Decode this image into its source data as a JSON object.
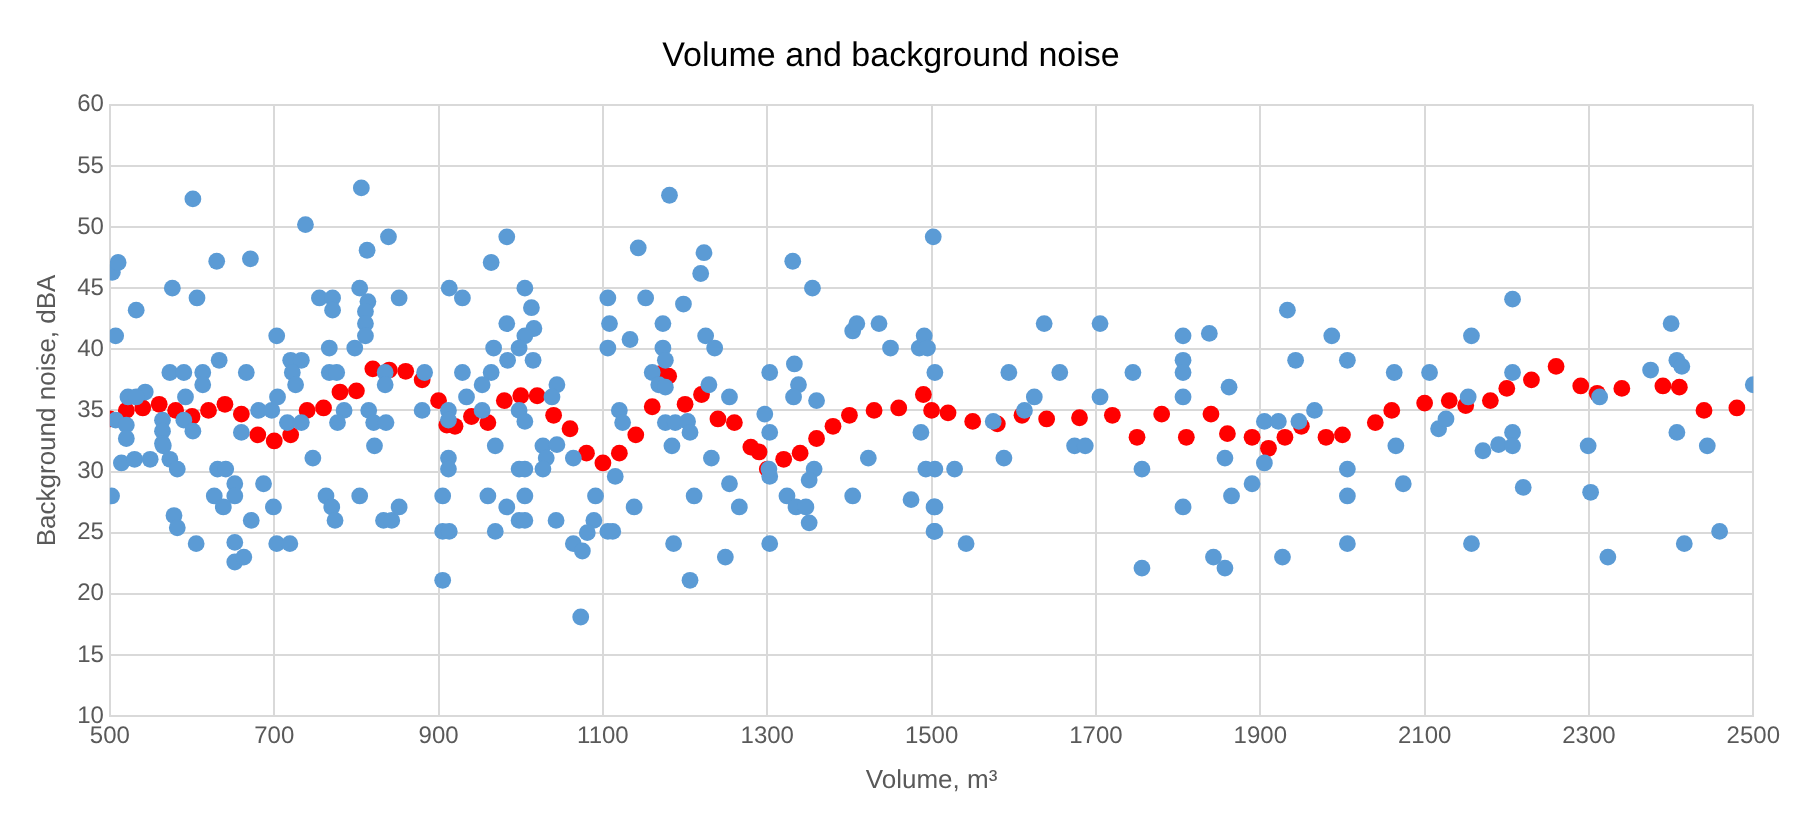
{
  "chart_data": {
    "type": "scatter",
    "title": "Volume and background noise",
    "xlabel": "Volume, m³",
    "ylabel": "Background noise, dBA",
    "xlim": [
      500,
      2500
    ],
    "xticks": [
      500,
      700,
      900,
      1100,
      1300,
      1500,
      1700,
      1900,
      2100,
      2300,
      2500
    ],
    "ylim": [
      10,
      60
    ],
    "yticks": [
      10,
      15,
      20,
      25,
      30,
      35,
      40,
      45,
      50,
      55,
      60
    ],
    "grid": true,
    "legend": false,
    "marker": "circle",
    "series": [
      {
        "color": "#5b9bd5",
        "x": [
          601,
          806,
          503,
          510,
          738,
          839,
          813,
          630,
          671,
          576,
          606,
          532,
          804,
          755,
          771,
          771,
          814,
          811,
          811,
          811,
          852,
          507,
          703,
          767,
          798,
          913,
          929,
          964,
          983,
          983,
          967,
          633,
          573,
          590,
          613,
          666,
          720,
          733,
          722,
          726,
          767,
          776,
          883,
          835,
          835,
          929,
          964,
          953,
          984,
          522,
          543,
          532,
          592,
          613,
          507,
          520,
          520,
          564,
          564,
          564,
          514,
          530,
          549,
          565,
          573,
          582,
          590,
          601,
          681,
          697,
          704,
          716,
          733,
          660,
          785,
          777,
          815,
          821,
          836,
          822,
          747,
          880,
          912,
          912,
          934,
          953,
          912,
          912,
          969,
          998,
          998,
          502,
          631,
          641,
          652,
          652,
          627,
          638,
          687,
          699,
          672,
          578,
          582,
          605,
          652,
          652,
          663,
          703,
          719,
          763,
          770,
          774,
          804,
          833,
          843,
          852,
          905,
          905,
          913,
          905,
          960,
          983,
          969,
          998,
          1181,
          1143,
          1223,
          1219,
          1331,
          1355,
          1005,
          1013,
          1016,
          1005,
          998,
          1015,
          1106,
          1152,
          1198,
          1108,
          1106,
          1133,
          1173,
          1173,
          1225,
          1236,
          1176,
          1160,
          1168,
          1176,
          1229,
          1254,
          1303,
          1333,
          1338,
          1332,
          1360,
          1404,
          1409,
          1436,
          1450,
          1485,
          1491,
          1495,
          1502,
          1044,
          1038,
          1005,
          1027,
          1031,
          1044,
          1064,
          1027,
          1120,
          1124,
          1115,
          1176,
          1188,
          1203,
          1206,
          1184,
          1232,
          1297,
          1303,
          1303,
          1302,
          1357,
          1351,
          1423,
          1487,
          1493,
          1005,
          1005,
          1005,
          1043,
          1091,
          1089,
          1081,
          1106,
          1112,
          1064,
          1075,
          1073,
          1138,
          1211,
          1186,
          1206,
          1254,
          1266,
          1249,
          1303,
          1324,
          1335,
          1347,
          1351,
          1404,
          1475,
          1503,
          1503,
          1504,
          1637,
          1705,
          1594,
          1656,
          1745,
          1625,
          1613,
          1705,
          1575,
          1806,
          1806,
          1806,
          1806,
          1838,
          1862,
          1933,
          1943,
          1987,
          2006,
          1905,
          1922,
          1947,
          1966,
          1674,
          1687,
          1588,
          1528,
          1504,
          1504,
          1504,
          1542,
          1756,
          1756,
          1857,
          1865,
          1890,
          1905,
          1806,
          1843,
          1857,
          1927,
          2006,
          2006,
          2006,
          2207,
          2157,
          2400,
          2063,
          2106,
          2207,
          2375,
          2407,
          2413,
          2500,
          2153,
          2313,
          2117,
          2126,
          2065,
          2171,
          2190,
          2207,
          2207,
          2299,
          2407,
          2444,
          2074,
          2220,
          2302,
          2157,
          2323,
          2416,
          2459
        ],
        "values": [
          52.3,
          53.2,
          46.3,
          47.1,
          50.2,
          49.2,
          48.1,
          47.2,
          47.4,
          45.0,
          44.2,
          43.2,
          45.0,
          44.2,
          44.2,
          43.2,
          43.9,
          43.1,
          42.1,
          41.1,
          44.2,
          41.1,
          41.1,
          40.1,
          40.1,
          45.0,
          44.2,
          47.1,
          49.2,
          42.1,
          40.1,
          39.1,
          38.1,
          38.1,
          38.1,
          38.1,
          39.1,
          39.1,
          38.1,
          37.1,
          38.1,
          38.1,
          38.1,
          38.1,
          37.1,
          38.1,
          38.1,
          37.1,
          39.1,
          36.1,
          36.5,
          36.1,
          36.1,
          37.1,
          34.2,
          33.8,
          32.7,
          34.2,
          33.3,
          32.3,
          30.7,
          31.0,
          31.0,
          32.1,
          31.0,
          30.2,
          34.2,
          33.3,
          35.0,
          35.0,
          36.1,
          34.0,
          34.0,
          33.2,
          35.0,
          34.0,
          35.0,
          34.0,
          34.0,
          32.1,
          31.1,
          35.0,
          35.0,
          34.2,
          36.1,
          35.0,
          31.1,
          30.2,
          32.1,
          30.2,
          35.0,
          28.0,
          30.2,
          30.2,
          29.0,
          28.0,
          28.0,
          27.1,
          29.0,
          27.1,
          26.0,
          26.4,
          25.4,
          24.1,
          24.2,
          22.6,
          23.0,
          24.1,
          24.1,
          28.0,
          27.1,
          26.0,
          28.0,
          26.0,
          26.0,
          27.1,
          28.0,
          25.1,
          25.1,
          21.1,
          28.0,
          27.1,
          25.1,
          26.0,
          52.6,
          48.3,
          47.9,
          46.2,
          47.2,
          45.0,
          45.0,
          43.4,
          41.7,
          41.1,
          40.1,
          39.1,
          44.2,
          44.2,
          43.7,
          42.1,
          40.1,
          40.8,
          42.1,
          40.1,
          41.1,
          40.1,
          39.1,
          38.1,
          37.1,
          36.9,
          37.1,
          36.1,
          38.1,
          38.8,
          37.1,
          36.1,
          35.8,
          41.5,
          42.1,
          42.1,
          40.1,
          40.1,
          41.1,
          40.1,
          49.2,
          37.1,
          36.1,
          34.1,
          32.1,
          31.1,
          32.2,
          31.1,
          30.2,
          35.0,
          34.0,
          29.6,
          34.0,
          34.0,
          34.1,
          33.2,
          32.1,
          31.1,
          34.7,
          33.2,
          29.6,
          30.2,
          30.2,
          29.3,
          31.1,
          33.2,
          30.2,
          30.2,
          28.0,
          26.0,
          26.0,
          28.0,
          26.0,
          25.0,
          25.1,
          25.1,
          24.1,
          23.5,
          18.1,
          27.1,
          28.0,
          24.1,
          21.1,
          29.0,
          27.1,
          23.0,
          24.1,
          28.0,
          27.1,
          27.1,
          25.8,
          28.0,
          27.7,
          27.1,
          25.1,
          38.1,
          42.1,
          42.1,
          38.1,
          38.1,
          38.1,
          36.1,
          35.0,
          36.1,
          34.1,
          41.1,
          39.1,
          38.1,
          36.1,
          41.3,
          36.9,
          43.2,
          39.1,
          41.1,
          39.1,
          34.1,
          34.1,
          34.1,
          35.0,
          32.1,
          32.1,
          31.1,
          30.2,
          30.2,
          27.1,
          25.1,
          24.1,
          30.2,
          22.1,
          31.1,
          28.0,
          29.0,
          30.7,
          27.1,
          23.0,
          22.1,
          23.0,
          30.2,
          28.0,
          24.1,
          44.1,
          41.1,
          42.1,
          38.1,
          38.1,
          38.1,
          38.3,
          39.1,
          38.6,
          37.1,
          36.1,
          36.1,
          33.5,
          34.3,
          32.1,
          31.7,
          32.2,
          33.2,
          32.1,
          32.1,
          33.2,
          32.1,
          29.0,
          28.7,
          28.3,
          24.1,
          23.0,
          24.1,
          25.1
        ]
      },
      {
        "color": "#ff0000",
        "x": [
          500,
          520,
          540,
          560,
          580,
          600,
          620,
          640,
          660,
          680,
          700,
          720,
          740,
          760,
          780,
          800,
          820,
          840,
          860,
          880,
          900,
          910,
          920,
          940,
          960,
          980,
          1000,
          1020,
          1040,
          1060,
          1080,
          1100,
          1120,
          1140,
          1160,
          1170,
          1180,
          1200,
          1220,
          1240,
          1260,
          1280,
          1290,
          1300,
          1320,
          1340,
          1360,
          1380,
          1400,
          1430,
          1460,
          1490,
          1500,
          1520,
          1550,
          1580,
          1610,
          1640,
          1680,
          1720,
          1750,
          1780,
          1810,
          1840,
          1860,
          1890,
          1910,
          1930,
          1950,
          1980,
          2000,
          2040,
          2060,
          2100,
          2130,
          2150,
          2180,
          2200,
          2230,
          2260,
          2290,
          2310,
          2340,
          2390,
          2410,
          2440,
          2480
        ],
        "values": [
          34.3,
          35,
          35.2,
          35.5,
          35,
          34.5,
          35,
          35.5,
          34.7,
          33,
          32.5,
          33,
          35,
          35.2,
          36.5,
          36.6,
          38.4,
          38.3,
          38.2,
          37.5,
          35.8,
          33.8,
          33.7,
          34.5,
          34,
          35.8,
          36.2,
          36.2,
          34.6,
          33.5,
          31.5,
          30.7,
          31.5,
          33,
          35.3,
          38,
          37.8,
          35.5,
          36.3,
          34.3,
          34,
          32,
          31.6,
          30.2,
          31,
          31.5,
          32.7,
          33.7,
          34.6,
          35,
          35.2,
          36.3,
          35,
          34.8,
          34.1,
          33.9,
          34.6,
          34.3,
          34.4,
          34.6,
          32.8,
          34.7,
          32.8,
          34.7,
          33.1,
          32.8,
          31.9,
          32.8,
          33.7,
          32.8,
          33,
          34,
          35,
          35.6,
          35.8,
          35.4,
          35.8,
          36.8,
          37.5,
          38.6,
          37,
          36.4,
          36.8,
          37,
          36.9,
          35,
          35.2
        ]
      }
    ]
  }
}
